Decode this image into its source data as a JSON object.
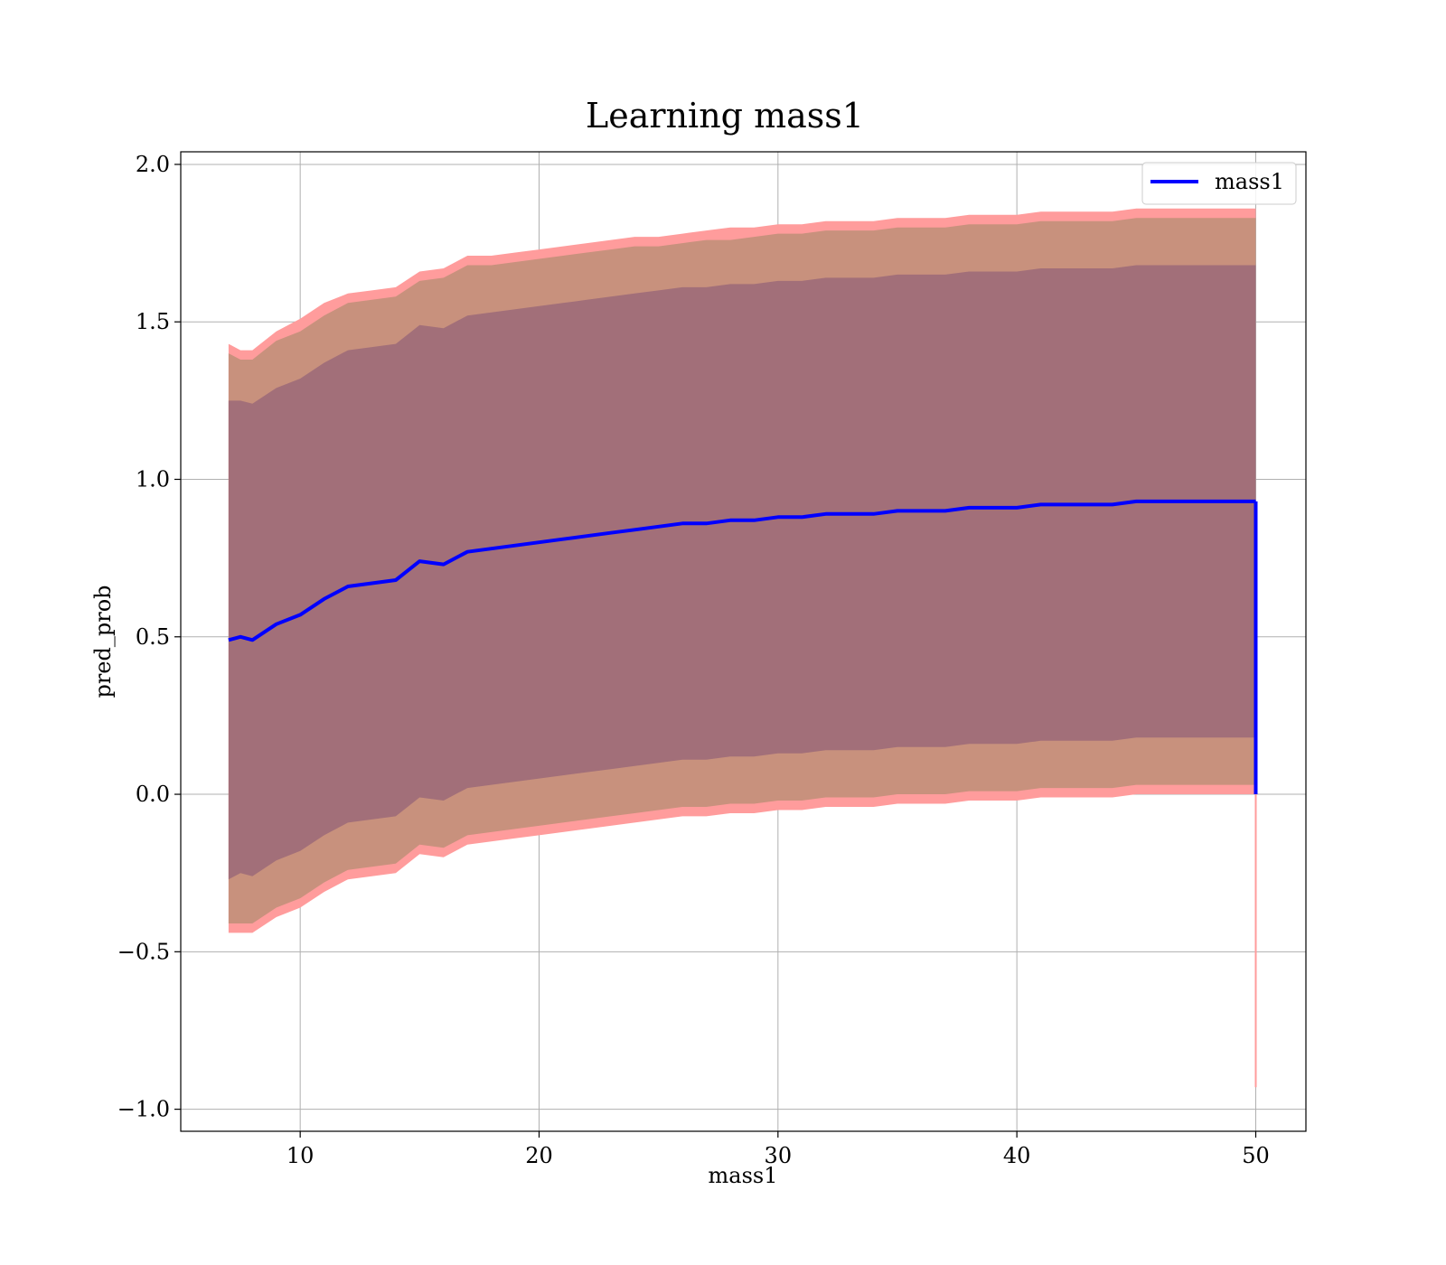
{
  "chart_data": {
    "type": "area",
    "title": "Learning mass1",
    "xlabel": "mass1",
    "ylabel": "pred_prob",
    "xlim": [
      5,
      52.1
    ],
    "ylim": [
      -1.07,
      2.04
    ],
    "xticks": [
      10,
      20,
      30,
      40,
      50
    ],
    "yticks": [
      -1.0,
      -0.5,
      0.0,
      0.5,
      1.0,
      1.5,
      2.0
    ],
    "xtick_labels": [
      "10",
      "20",
      "30",
      "40",
      "50"
    ],
    "ytick_labels": [
      "−1.0",
      "−0.5",
      "0.0",
      "0.5",
      "1.0",
      "1.5",
      "2.0"
    ],
    "grid": true,
    "legend": {
      "position": "top-right",
      "entries": [
        "mass1"
      ]
    },
    "colors": {
      "mean_line": "#0000ff",
      "outer_band": "#ff9c9c",
      "middle_band": "#c8917d",
      "inner_band": "#a26f79",
      "grid": "#b0b0b0"
    },
    "series": [
      {
        "name": "mass1",
        "x": [
          7,
          7.5,
          8,
          9,
          10,
          11,
          12,
          13,
          14,
          15,
          16,
          17,
          18,
          19,
          20,
          21,
          22,
          23,
          24,
          25,
          26,
          27,
          28,
          29,
          30,
          31,
          32,
          33,
          34,
          35,
          36,
          37,
          38,
          39,
          40,
          41,
          42,
          43,
          44,
          45,
          46,
          47,
          48,
          49,
          50
        ],
        "y": [
          0.49,
          0.5,
          0.49,
          0.54,
          0.57,
          0.62,
          0.66,
          0.67,
          0.68,
          0.74,
          0.73,
          0.77,
          0.78,
          0.79,
          0.8,
          0.81,
          0.82,
          0.83,
          0.84,
          0.85,
          0.86,
          0.86,
          0.87,
          0.87,
          0.88,
          0.88,
          0.89,
          0.89,
          0.89,
          0.9,
          0.9,
          0.9,
          0.91,
          0.91,
          0.91,
          0.92,
          0.92,
          0.92,
          0.92,
          0.93,
          0.93,
          0.93,
          0.93,
          0.93,
          0.93
        ]
      }
    ],
    "bands": {
      "x": [
        7,
        7.5,
        8,
        9,
        10,
        11,
        12,
        13,
        14,
        15,
        16,
        17,
        18,
        19,
        20,
        21,
        22,
        23,
        24,
        25,
        26,
        27,
        28,
        29,
        30,
        31,
        32,
        33,
        34,
        35,
        36,
        37,
        38,
        39,
        40,
        41,
        42,
        43,
        44,
        45,
        46,
        47,
        48,
        49,
        50
      ],
      "outer_upper": [
        1.43,
        1.41,
        1.41,
        1.47,
        1.51,
        1.56,
        1.59,
        1.6,
        1.61,
        1.66,
        1.67,
        1.71,
        1.71,
        1.72,
        1.73,
        1.74,
        1.75,
        1.76,
        1.77,
        1.77,
        1.78,
        1.79,
        1.8,
        1.8,
        1.81,
        1.81,
        1.82,
        1.82,
        1.82,
        1.83,
        1.83,
        1.83,
        1.84,
        1.84,
        1.84,
        1.85,
        1.85,
        1.85,
        1.85,
        1.86,
        1.86,
        1.86,
        1.86,
        1.86,
        1.86
      ],
      "middle_upper": [
        1.4,
        1.38,
        1.38,
        1.44,
        1.47,
        1.52,
        1.56,
        1.57,
        1.58,
        1.63,
        1.64,
        1.68,
        1.68,
        1.69,
        1.7,
        1.71,
        1.72,
        1.73,
        1.74,
        1.74,
        1.75,
        1.76,
        1.76,
        1.77,
        1.78,
        1.78,
        1.79,
        1.79,
        1.79,
        1.8,
        1.8,
        1.8,
        1.81,
        1.81,
        1.81,
        1.82,
        1.82,
        1.82,
        1.82,
        1.83,
        1.83,
        1.83,
        1.83,
        1.83,
        1.83
      ],
      "inner_upper": [
        1.25,
        1.25,
        1.24,
        1.29,
        1.32,
        1.37,
        1.41,
        1.42,
        1.43,
        1.49,
        1.48,
        1.52,
        1.53,
        1.54,
        1.55,
        1.56,
        1.57,
        1.58,
        1.59,
        1.6,
        1.61,
        1.61,
        1.62,
        1.62,
        1.63,
        1.63,
        1.64,
        1.64,
        1.64,
        1.65,
        1.65,
        1.65,
        1.66,
        1.66,
        1.66,
        1.67,
        1.67,
        1.67,
        1.67,
        1.68,
        1.68,
        1.68,
        1.68,
        1.68,
        1.68
      ],
      "inner_lower": [
        -0.27,
        -0.25,
        -0.26,
        -0.21,
        -0.18,
        -0.13,
        -0.09,
        -0.08,
        -0.07,
        -0.01,
        -0.02,
        0.02,
        0.03,
        0.04,
        0.05,
        0.06,
        0.07,
        0.08,
        0.09,
        0.1,
        0.11,
        0.11,
        0.12,
        0.12,
        0.13,
        0.13,
        0.14,
        0.14,
        0.14,
        0.15,
        0.15,
        0.15,
        0.16,
        0.16,
        0.16,
        0.17,
        0.17,
        0.17,
        0.17,
        0.18,
        0.18,
        0.18,
        0.18,
        0.18,
        0.18
      ],
      "middle_lower": [
        -0.41,
        -0.41,
        -0.41,
        -0.36,
        -0.33,
        -0.28,
        -0.24,
        -0.23,
        -0.22,
        -0.16,
        -0.17,
        -0.13,
        -0.12,
        -0.11,
        -0.1,
        -0.09,
        -0.08,
        -0.07,
        -0.06,
        -0.05,
        -0.04,
        -0.04,
        -0.03,
        -0.03,
        -0.02,
        -0.02,
        -0.01,
        -0.01,
        -0.01,
        0.0,
        0.0,
        0.0,
        0.01,
        0.01,
        0.01,
        0.02,
        0.02,
        0.02,
        0.02,
        0.03,
        0.03,
        0.03,
        0.03,
        0.03,
        0.03
      ],
      "outer_lower": [
        -0.44,
        -0.44,
        -0.44,
        -0.39,
        -0.36,
        -0.31,
        -0.27,
        -0.26,
        -0.25,
        -0.19,
        -0.2,
        -0.16,
        -0.15,
        -0.14,
        -0.13,
        -0.12,
        -0.11,
        -0.1,
        -0.09,
        -0.08,
        -0.07,
        -0.07,
        -0.06,
        -0.06,
        -0.05,
        -0.05,
        -0.04,
        -0.04,
        -0.04,
        -0.03,
        -0.03,
        -0.03,
        -0.02,
        -0.02,
        -0.02,
        -0.01,
        -0.01,
        -0.01,
        -0.01,
        0.0,
        0.0,
        0.0,
        0.0,
        0.0,
        0.0
      ]
    },
    "end_drop": {
      "x": 50,
      "line_y": [
        0.93,
        0.0
      ],
      "band_y": [
        0.0,
        -0.93
      ]
    }
  }
}
